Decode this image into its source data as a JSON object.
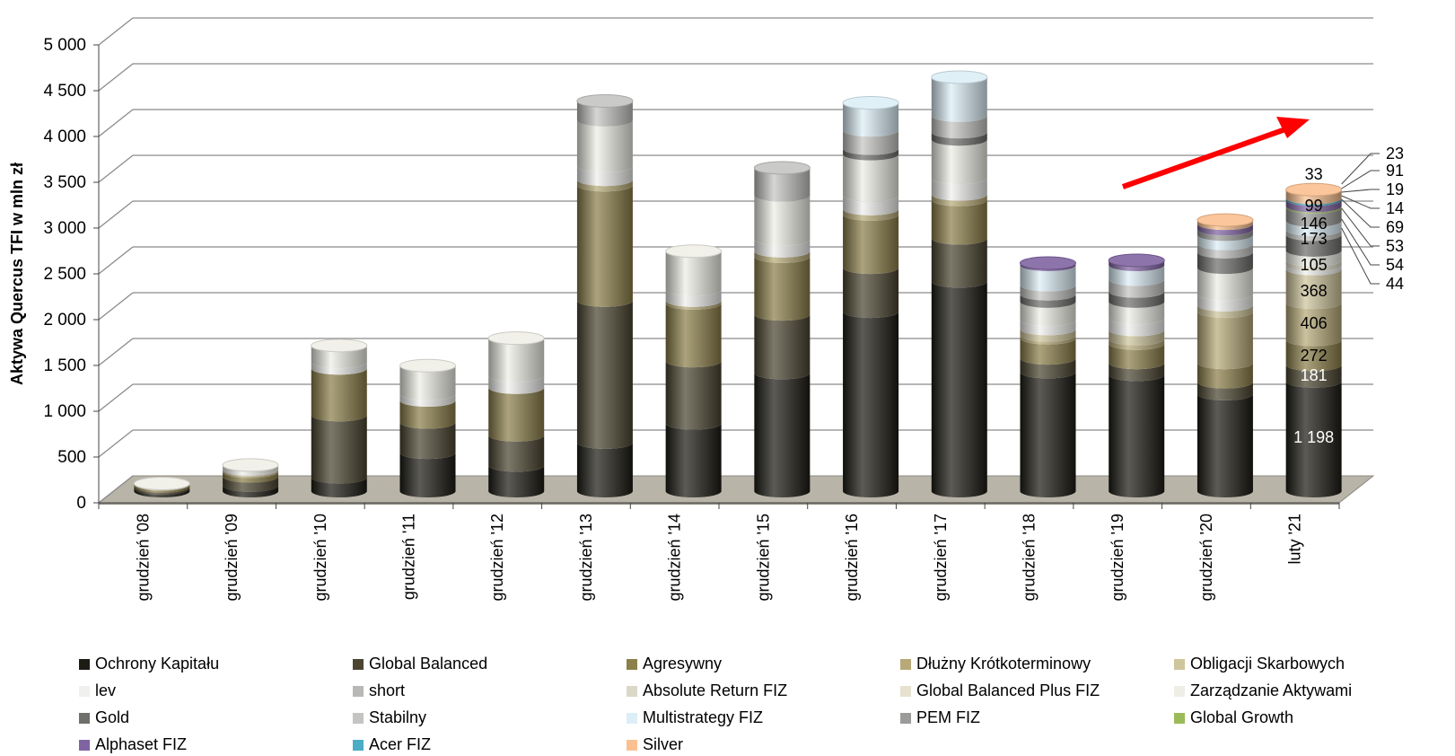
{
  "chart_data": {
    "type": "bar",
    "stacked": true,
    "style": "3d-cylinder",
    "ylabel": "Aktywa Quercus TFI w mln zł",
    "xlabel": "",
    "ylim": [
      0,
      5000
    ],
    "yticks": [
      0,
      500,
      1000,
      1500,
      2000,
      2500,
      3000,
      3500,
      4000,
      4500,
      5000
    ],
    "ytick_labels": [
      "0",
      "500",
      "1 000",
      "1 500",
      "2 000",
      "2 500",
      "3 000",
      "3 500",
      "4 000",
      "4 500",
      "5 000"
    ],
    "grid": true,
    "legend_position": "bottom",
    "categories": [
      "grudzień '08",
      "grudzień '09",
      "grudzień '10",
      "grudzień '11",
      "grudzień '12",
      "grudzień '13",
      "grudzień '14",
      "grudzień '15",
      "grudzień '16",
      "grudzień '17",
      "grudzień '18",
      "grudzień '19",
      "grudzień '20",
      "luty '21"
    ],
    "series": [
      {
        "name": "Ochrony Kapitału",
        "color": "#1c1b14",
        "values": [
          30,
          60,
          150,
          420,
          280,
          530,
          740,
          1290,
          1960,
          2290,
          1300,
          1270,
          1060,
          1198
        ]
      },
      {
        "name": "Global Balanced",
        "color": "#4b4530",
        "values": [
          20,
          100,
          680,
          330,
          330,
          1550,
          680,
          640,
          480,
          470,
          150,
          130,
          130,
          181
        ]
      },
      {
        "name": "Agresywny",
        "color": "#8c7f4a",
        "values": [
          20,
          50,
          510,
          240,
          520,
          1260,
          630,
          630,
          580,
          420,
          220,
          210,
          210,
          272
        ]
      },
      {
        "name": "Dłużny Krótkoterminowy",
        "color": "#b7aa78",
        "values": [
          5,
          15,
          0,
          0,
          0,
          60,
          30,
          60,
          60,
          60,
          30,
          50,
          560,
          406
        ]
      },
      {
        "name": "Obligacji Skarbowych",
        "color": "#cfc59d",
        "values": [
          3,
          10,
          0,
          0,
          0,
          0,
          0,
          0,
          0,
          0,
          70,
          100,
          70,
          368
        ]
      },
      {
        "name": "lev",
        "color": "#f0f0ee",
        "values": [
          2,
          20,
          70,
          70,
          130,
          150,
          120,
          130,
          150,
          180,
          100,
          130,
          120,
          44
        ]
      },
      {
        "name": "short",
        "color": "#b8b8b6",
        "values": [
          0,
          0,
          0,
          0,
          0,
          0,
          0,
          0,
          0,
          0,
          0,
          0,
          0,
          0
        ]
      },
      {
        "name": "Absolute Return FIZ",
        "color": "#dcd8c8",
        "values": [
          0,
          0,
          0,
          0,
          0,
          0,
          0,
          0,
          0,
          0,
          0,
          0,
          0,
          0
        ]
      },
      {
        "name": "Global Balanced Plus FIZ",
        "color": "#e6e2cf",
        "values": [
          0,
          0,
          0,
          0,
          0,
          0,
          0,
          0,
          0,
          0,
          0,
          0,
          0,
          54
        ]
      },
      {
        "name": "Zarządzanie Aktywami",
        "color": "#efeee6",
        "values": [
          3,
          30,
          180,
          310,
          410,
          500,
          420,
          480,
          450,
          420,
          200,
          180,
          290,
          105
        ]
      },
      {
        "name": "Gold",
        "color": "#6f6f6c",
        "values": [
          0,
          0,
          0,
          0,
          0,
          0,
          0,
          0,
          60,
          80,
          80,
          110,
          170,
          173
        ]
      },
      {
        "name": "Stabilny",
        "color": "#c4c4c2",
        "values": [
          0,
          0,
          0,
          0,
          0,
          210,
          0,
          300,
          200,
          180,
          100,
          130,
          90,
          53
        ]
      },
      {
        "name": "Multistrategy FIZ",
        "color": "#dceef6",
        "values": [
          0,
          0,
          0,
          0,
          0,
          0,
          0,
          0,
          300,
          420,
          220,
          160,
          100,
          99
        ]
      },
      {
        "name": "PEM FIZ",
        "color": "#9b9b99",
        "values": [
          0,
          0,
          0,
          0,
          0,
          0,
          0,
          0,
          0,
          0,
          0,
          0,
          60,
          146
        ]
      },
      {
        "name": "Global Growth",
        "color": "#9bbb59",
        "values": [
          0,
          0,
          0,
          0,
          0,
          0,
          0,
          0,
          0,
          0,
          0,
          0,
          0,
          14
        ]
      },
      {
        "name": "Alphaset FIZ",
        "color": "#8064a2",
        "values": [
          0,
          0,
          0,
          0,
          0,
          0,
          0,
          0,
          0,
          0,
          20,
          50,
          60,
          69
        ]
      },
      {
        "name": "Acer FIZ",
        "color": "#4bacc6",
        "values": [
          0,
          0,
          0,
          0,
          0,
          0,
          0,
          0,
          0,
          0,
          0,
          0,
          0,
          19
        ]
      },
      {
        "name": "Silver",
        "color": "#fac090",
        "values": [
          0,
          0,
          0,
          0,
          0,
          0,
          0,
          0,
          0,
          0,
          0,
          0,
          40,
          91
        ]
      }
    ],
    "last_bar_labels": [
      {
        "text": "1 198",
        "value": 1198,
        "position": "inside",
        "color": "#ffffff"
      },
      {
        "text": "181",
        "value": 181,
        "position": "inside",
        "color": "#ffffff"
      },
      {
        "text": "272",
        "value": 272,
        "position": "inside",
        "color": "#000000"
      },
      {
        "text": "406",
        "value": 406,
        "position": "inside",
        "color": "#000000"
      },
      {
        "text": "368",
        "value": 368,
        "position": "inside",
        "color": "#000000"
      },
      {
        "text": "105",
        "value": 105,
        "position": "inside",
        "color": "#000000"
      },
      {
        "text": "173",
        "value": 173,
        "position": "inside",
        "color": "#000000"
      },
      {
        "text": "146",
        "value": 146,
        "position": "inside",
        "color": "#000000"
      },
      {
        "text": "99",
        "value": 99,
        "position": "inside",
        "color": "#000000"
      },
      {
        "text": "33",
        "value": 33,
        "position": "inside",
        "color": "#000000"
      },
      {
        "text": "23",
        "value": 23,
        "position": "outside",
        "color": "#000000"
      },
      {
        "text": "91",
        "value": 91,
        "position": "outside",
        "color": "#000000"
      },
      {
        "text": "19",
        "value": 19,
        "position": "outside",
        "color": "#000000"
      },
      {
        "text": "14",
        "value": 14,
        "position": "outside",
        "color": "#000000"
      },
      {
        "text": "69",
        "value": 69,
        "position": "outside",
        "color": "#000000"
      },
      {
        "text": "53",
        "value": 53,
        "position": "outside",
        "color": "#000000"
      },
      {
        "text": "54",
        "value": 54,
        "position": "outside",
        "color": "#000000"
      },
      {
        "text": "44",
        "value": 44,
        "position": "outside",
        "color": "#000000"
      }
    ],
    "annotation": {
      "type": "trend-arrow",
      "color": "#ff0000",
      "direction": "up-right"
    }
  }
}
